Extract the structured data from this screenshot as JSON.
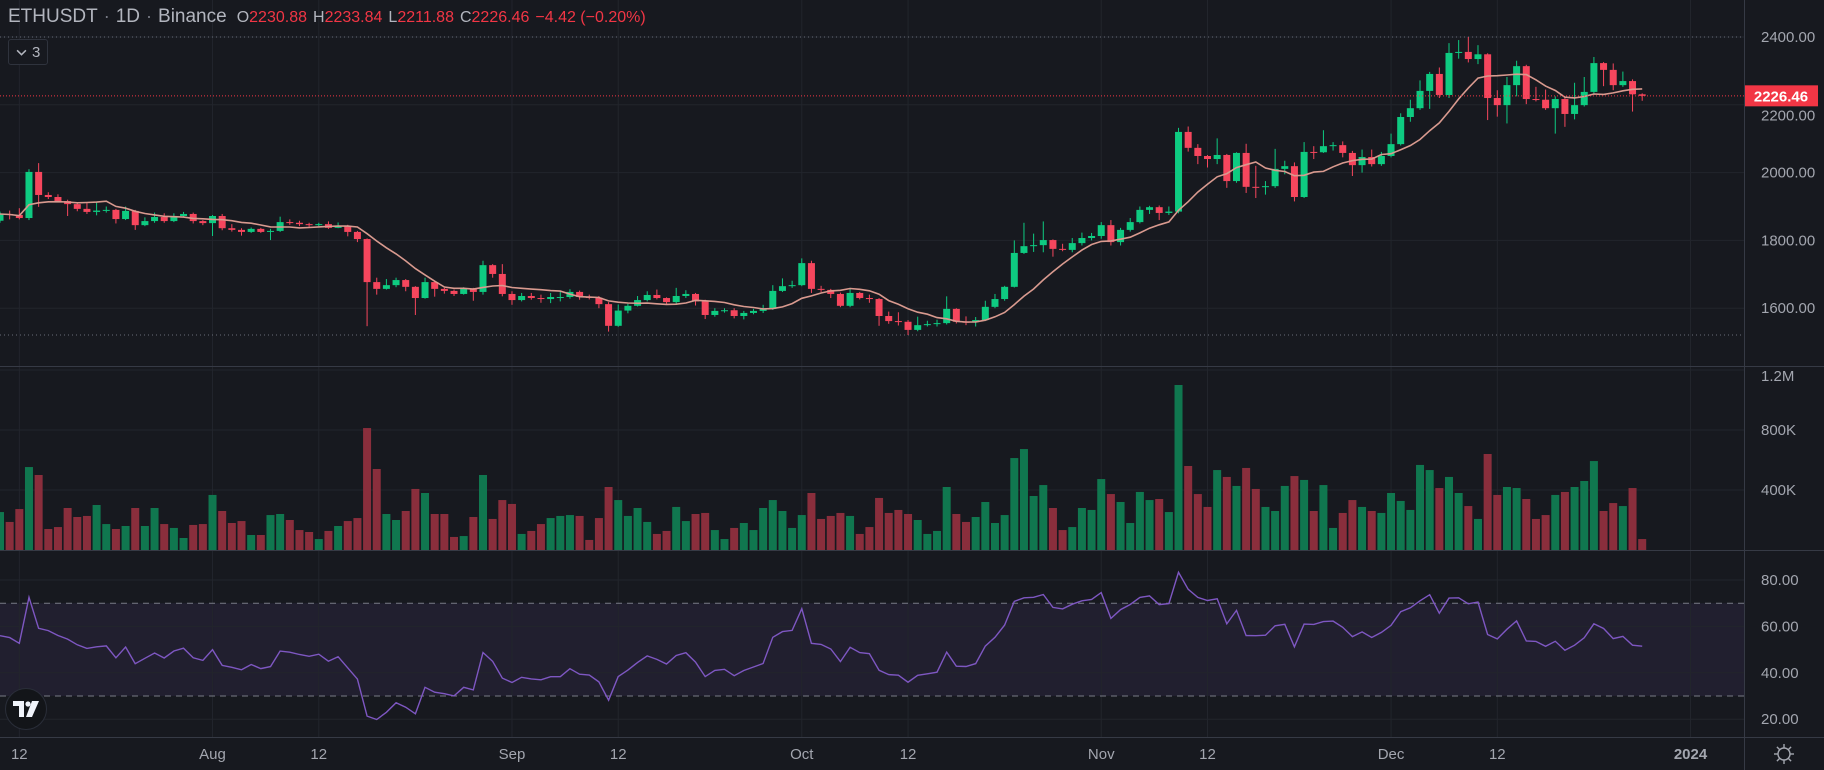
{
  "legend": {
    "symbol": "ETHUSDT",
    "interval": "1D",
    "exchange": "Binance",
    "separator": "·",
    "o_key": "O",
    "o_val": "2230.88",
    "h_key": "H",
    "h_val": "2233.84",
    "l_key": "L",
    "l_val": "2211.88",
    "c_key": "C",
    "c_val": "2226.46",
    "change": "−4.42 (−0.20%)",
    "indicators_count": "3"
  },
  "colors": {
    "background": "#17191f",
    "up": "#0ecb81",
    "down": "#f6465d",
    "volume_up": "#10774f",
    "volume_down": "#8a2e3c",
    "ma": "#d99a8f",
    "rsi": "#7e57c2",
    "grid": "#22252c",
    "axis_text": "#a3a6af",
    "last_price": "#f23645"
  },
  "last_price_label": "2226.46",
  "chart_data": {
    "type": "candlestick",
    "symbol": "ETHUSDT",
    "first_open": 1858,
    "close": [
      1878,
      1875,
      1866,
      2002,
      1934,
      1928,
      1916,
      1907,
      1893,
      1884,
      1888,
      1890,
      1863,
      1887,
      1845,
      1857,
      1869,
      1857,
      1872,
      1878,
      1857,
      1851,
      1872,
      1836,
      1831,
      1825,
      1834,
      1825,
      1828,
      1854,
      1852,
      1848,
      1845,
      1848,
      1837,
      1843,
      1825,
      1804,
      1677,
      1657,
      1668,
      1683,
      1663,
      1630,
      1677,
      1657,
      1651,
      1642,
      1657,
      1648,
      1727,
      1701,
      1642,
      1624,
      1636,
      1630,
      1627,
      1633,
      1633,
      1648,
      1633,
      1631,
      1612,
      1548,
      1593,
      1607,
      1624,
      1639,
      1630,
      1618,
      1636,
      1642,
      1620,
      1580,
      1592,
      1594,
      1577,
      1586,
      1592,
      1598,
      1651,
      1665,
      1668,
      1733,
      1657,
      1654,
      1642,
      1607,
      1645,
      1630,
      1627,
      1577,
      1562,
      1560,
      1536,
      1550,
      1553,
      1556,
      1598,
      1560,
      1559,
      1565,
      1604,
      1627,
      1663,
      1763,
      1783,
      1786,
      1801,
      1775,
      1772,
      1792,
      1807,
      1813,
      1845,
      1795,
      1831,
      1854,
      1890,
      1898,
      1881,
      1885,
      2120,
      2073,
      2049,
      2040,
      2052,
      1975,
      2058,
      1958,
      1957,
      1960,
      2011,
      2019,
      1928,
      2061,
      2060,
      2078,
      2081,
      2058,
      2022,
      2046,
      2025,
      2049,
      2084,
      2164,
      2190,
      2241,
      2291,
      2229,
      2353,
      2356,
      2335,
      2349,
      2220,
      2199,
      2258,
      2314,
      2217,
      2215,
      2190,
      2217,
      2173,
      2199,
      2238,
      2323,
      2303,
      2258,
      2270,
      2230.88,
      2226.46
    ],
    "high": [
      1885,
      1888,
      1895,
      2010,
      2028,
      1942,
      1936,
      1920,
      1912,
      1910,
      1912,
      1900,
      1893,
      1900,
      1890,
      1868,
      1882,
      1880,
      1880,
      1884,
      1882,
      1860,
      1875,
      1878,
      1848,
      1836,
      1838,
      1837,
      1834,
      1870,
      1862,
      1858,
      1852,
      1852,
      1856,
      1853,
      1846,
      1828,
      1806,
      1690,
      1686,
      1690,
      1686,
      1665,
      1690,
      1680,
      1660,
      1655,
      1662,
      1660,
      1740,
      1730,
      1730,
      1650,
      1645,
      1645,
      1640,
      1645,
      1652,
      1656,
      1652,
      1640,
      1636,
      1618,
      1611,
      1613,
      1636,
      1650,
      1655,
      1632,
      1660,
      1653,
      1645,
      1625,
      1600,
      1600,
      1600,
      1592,
      1598,
      1610,
      1668,
      1688,
      1681,
      1747,
      1740,
      1666,
      1657,
      1646,
      1660,
      1648,
      1640,
      1630,
      1590,
      1588,
      1565,
      1575,
      1563,
      1566,
      1635,
      1600,
      1576,
      1574,
      1622,
      1642,
      1666,
      1800,
      1852,
      1820,
      1856,
      1803,
      1790,
      1807,
      1823,
      1822,
      1854,
      1860,
      1837,
      1866,
      1900,
      1902,
      1903,
      1900,
      2132,
      2136,
      2084,
      2052,
      2101,
      2055,
      2060,
      2085,
      2020,
      1975,
      2070,
      2035,
      2030,
      2090,
      2078,
      2125,
      2090,
      2092,
      2064,
      2068,
      2068,
      2061,
      2115,
      2175,
      2215,
      2272,
      2297,
      2310,
      2382,
      2391,
      2400,
      2376,
      2352,
      2243,
      2282,
      2330,
      2318,
      2253,
      2245,
      2225,
      2222,
      2265,
      2282,
      2341,
      2326,
      2322,
      2298,
      2275,
      2233.84
    ],
    "low": [
      1852,
      1862,
      1862,
      1860,
      1899,
      1922,
      1912,
      1872,
      1886,
      1878,
      1874,
      1882,
      1850,
      1860,
      1831,
      1842,
      1852,
      1852,
      1854,
      1868,
      1850,
      1845,
      1813,
      1830,
      1826,
      1814,
      1822,
      1822,
      1801,
      1825,
      1846,
      1842,
      1840,
      1842,
      1834,
      1836,
      1812,
      1795,
      1547,
      1640,
      1655,
      1662,
      1650,
      1580,
      1628,
      1634,
      1643,
      1636,
      1640,
      1622,
      1640,
      1690,
      1635,
      1610,
      1620,
      1625,
      1616,
      1615,
      1620,
      1628,
      1625,
      1626,
      1600,
      1531,
      1545,
      1585,
      1605,
      1620,
      1626,
      1610,
      1612,
      1630,
      1608,
      1568,
      1575,
      1587,
      1570,
      1567,
      1582,
      1586,
      1595,
      1648,
      1660,
      1665,
      1645,
      1648,
      1630,
      1603,
      1603,
      1626,
      1616,
      1548,
      1554,
      1549,
      1521,
      1532,
      1546,
      1546,
      1552,
      1555,
      1550,
      1546,
      1562,
      1600,
      1622,
      1661,
      1760,
      1766,
      1765,
      1752,
      1768,
      1765,
      1785,
      1800,
      1805,
      1785,
      1785,
      1826,
      1850,
      1878,
      1860,
      1875,
      1880,
      2062,
      2025,
      2015,
      2025,
      1955,
      1970,
      1940,
      1925,
      1935,
      1955,
      1995,
      1915,
      1925,
      2040,
      2058,
      2065,
      2045,
      1990,
      2000,
      2018,
      2020,
      2045,
      2080,
      2150,
      2185,
      2188,
      2220,
      2220,
      2336,
      2325,
      2320,
      2155,
      2165,
      2145,
      2225,
      2202,
      2210,
      2185,
      2115,
      2135,
      2157,
      2195,
      2233,
      2255,
      2243,
      2253,
      2180,
      2211.88
    ],
    "volume_k": [
      253,
      187,
      273,
      553,
      500,
      140,
      153,
      280,
      220,
      227,
      300,
      173,
      140,
      160,
      280,
      160,
      280,
      173,
      147,
      80,
      167,
      173,
      367,
      260,
      180,
      193,
      100,
      100,
      233,
      240,
      200,
      133,
      120,
      73,
      127,
      160,
      193,
      213,
      813,
      540,
      240,
      200,
      260,
      407,
      380,
      240,
      240,
      87,
      93,
      220,
      500,
      207,
      333,
      307,
      107,
      127,
      173,
      213,
      227,
      233,
      227,
      67,
      213,
      420,
      333,
      227,
      280,
      187,
      107,
      127,
      287,
      193,
      240,
      247,
      133,
      73,
      147,
      180,
      133,
      280,
      333,
      260,
      147,
      233,
      380,
      207,
      227,
      247,
      227,
      107,
      153,
      347,
      247,
      267,
      240,
      200,
      107,
      127,
      420,
      240,
      187,
      220,
      320,
      180,
      233,
      613,
      673,
      360,
      433,
      280,
      133,
      153,
      280,
      267,
      473,
      373,
      320,
      180,
      387,
      333,
      340,
      253,
      1100,
      560,
      373,
      287,
      533,
      487,
      427,
      547,
      407,
      287,
      260,
      427,
      493,
      467,
      260,
      433,
      147,
      247,
      333,
      287,
      260,
      247,
      380,
      327,
      267,
      567,
      533,
      413,
      487,
      380,
      293,
      207,
      640,
      367,
      420,
      413,
      340,
      207,
      233,
      367,
      387,
      420,
      460,
      593,
      260,
      313,
      293,
      413,
      73
    ],
    "ma_period": 9,
    "rsi_period": 14,
    "rsi_bands": [
      70,
      30
    ],
    "price_range_high": 2400,
    "price_range_low": 1521,
    "price_axis": {
      "ticks": [
        {
          "v": 2400,
          "label": "2400.00"
        },
        {
          "v": 2200,
          "label": "2200.00"
        },
        {
          "v": 2000,
          "label": "2000.00"
        },
        {
          "v": 1800,
          "label": "1800.00"
        },
        {
          "v": 1600,
          "label": "1600.00"
        }
      ]
    },
    "volume_axis": {
      "ticks": [
        {
          "v": 1200,
          "label": "1.2M"
        },
        {
          "v": 800,
          "label": "800K"
        },
        {
          "v": 400,
          "label": "400K"
        }
      ]
    },
    "rsi_axis": {
      "ticks": [
        {
          "v": 80,
          "label": "80.00"
        },
        {
          "v": 60,
          "label": "60.00"
        },
        {
          "v": 40,
          "label": "40.00"
        },
        {
          "v": 20,
          "label": "20.00"
        }
      ]
    },
    "time_axis": {
      "ticks": [
        {
          "day": 2,
          "label": "12"
        },
        {
          "day": 22,
          "label": "Aug"
        },
        {
          "day": 33,
          "label": "12"
        },
        {
          "day": 53,
          "label": "Sep"
        },
        {
          "day": 64,
          "label": "12"
        },
        {
          "day": 83,
          "label": "Oct"
        },
        {
          "day": 94,
          "label": "12"
        },
        {
          "day": 114,
          "label": "Nov"
        },
        {
          "day": 125,
          "label": "12"
        },
        {
          "day": 144,
          "label": "Dec"
        },
        {
          "day": 155,
          "label": "12"
        },
        {
          "day": 175,
          "label": "2024"
        }
      ]
    }
  }
}
